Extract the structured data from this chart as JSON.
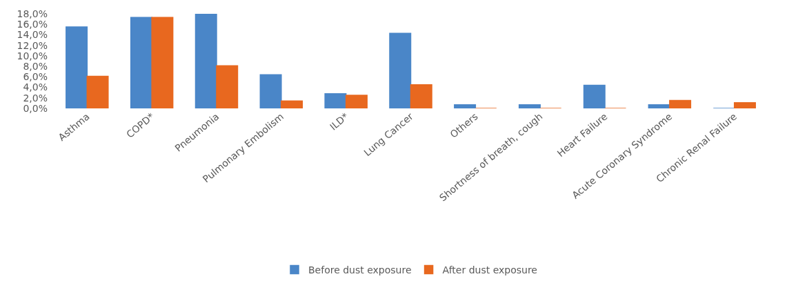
{
  "chart_data": {
    "type": "bar",
    "categories": [
      "Asthma",
      "COPD*",
      "Pneumonia",
      "Pulmonary Embolism",
      "ILD*",
      "Lung Cancer",
      "Others",
      "Shortness of breath, cough",
      "Heart Failure",
      "Acute Coronary Syndrome",
      "Chronic Renal Failure"
    ],
    "series": [
      {
        "name": "Before dust exposure",
        "color": "#4a86c8",
        "values": [
          15.5,
          17.3,
          18.0,
          6.4,
          2.8,
          14.3,
          0.7,
          0.7,
          4.4,
          0.7,
          0
        ]
      },
      {
        "name": "After dust exposure",
        "color": "#e8681f",
        "values": [
          6.1,
          17.3,
          8.1,
          1.4,
          2.5,
          4.5,
          0,
          0,
          0,
          1.5,
          1.1
        ]
      }
    ],
    "ylim": [
      0,
      18
    ],
    "yticks": [
      {
        "value": 0,
        "label": "0,0%"
      },
      {
        "value": 2,
        "label": "2,0%"
      },
      {
        "value": 4,
        "label": "4,0%"
      },
      {
        "value": 6,
        "label": "6,0%"
      },
      {
        "value": 8,
        "label": "8,0%"
      },
      {
        "value": 10,
        "label": "10,0%"
      },
      {
        "value": 12,
        "label": "12,0%"
      },
      {
        "value": 14,
        "label": "14,0%"
      },
      {
        "value": 16,
        "label": "16,0%"
      },
      {
        "value": 18,
        "label": "18,0%"
      }
    ],
    "legend": "bottom"
  }
}
